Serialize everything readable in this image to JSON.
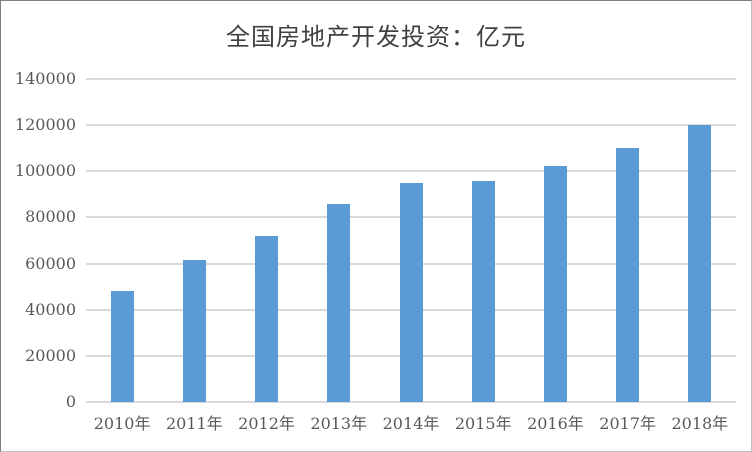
{
  "chart_data": {
    "type": "bar",
    "title": "全国房地产开发投资：亿元",
    "categories": [
      "2010年",
      "2011年",
      "2012年",
      "2013年",
      "2014年",
      "2015年",
      "2016年",
      "2017年",
      "2018年"
    ],
    "values": [
      48000,
      61500,
      72000,
      86000,
      95000,
      96000,
      102500,
      110000,
      120000
    ],
    "xlabel": "",
    "ylabel": "",
    "ylim": [
      0,
      140000
    ],
    "yticks": [
      0,
      20000,
      40000,
      60000,
      80000,
      100000,
      120000,
      140000
    ],
    "grid": true,
    "legend": false,
    "bar_color": "#5b9bd5",
    "gridline_color": "#d9d9d9",
    "axis_text_color": "#595959",
    "title_color": "#404040",
    "background_color": "#ffffff"
  }
}
